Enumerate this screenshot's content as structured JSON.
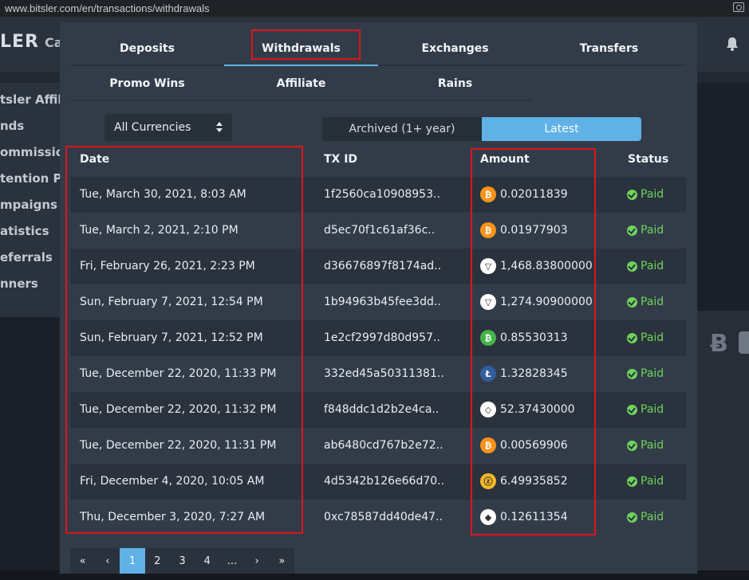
{
  "browser": {
    "url": "www.bitsler.com/en/transactions/withdrawals"
  },
  "site": {
    "logo": "LER",
    "header_tab": "Ca",
    "sidebar": [
      "tsler Affili",
      "nds",
      "ommission",
      "tention P",
      "mpaigns",
      "atistics",
      "eferrals",
      "nners"
    ],
    "right_glyph": "Ƀ"
  },
  "tabs_row1": [
    {
      "label": "Deposits",
      "active": false
    },
    {
      "label": "Withdrawals",
      "active": true
    },
    {
      "label": "Exchanges",
      "active": false
    },
    {
      "label": "Transfers",
      "active": false
    }
  ],
  "tabs_row2": [
    {
      "label": "Promo Wins"
    },
    {
      "label": "Affiliate"
    },
    {
      "label": "Rains"
    }
  ],
  "filter": {
    "currency": "All Currencies"
  },
  "period": {
    "archived": "Archived (1+ year)",
    "latest": "Latest",
    "selected": "Latest"
  },
  "table": {
    "headers": {
      "date": "Date",
      "txid": "TX ID",
      "amount": "Amount",
      "status": "Status"
    },
    "rows": [
      {
        "date": "Tue, March 30, 2021, 8:03 AM",
        "txid": "1f2560ca10908953..",
        "coin": "btc",
        "amount": "0.02011839",
        "status": "Paid"
      },
      {
        "date": "Tue, March 2, 2021, 2:10 PM",
        "txid": "d5ec70f1c61af36c..",
        "coin": "btc",
        "amount": "0.01977903",
        "status": "Paid"
      },
      {
        "date": "Fri, February 26, 2021, 2:23 PM",
        "txid": "d36676897f8174ad..",
        "coin": "trx",
        "amount": "1,468.83800000",
        "status": "Paid"
      },
      {
        "date": "Sun, February 7, 2021, 12:54 PM",
        "txid": "1b94963b45fee3dd..",
        "coin": "trx",
        "amount": "1,274.90900000",
        "status": "Paid"
      },
      {
        "date": "Sun, February 7, 2021, 12:52 PM",
        "txid": "1e2cf2997d80d957..",
        "coin": "bch",
        "amount": "0.85530313",
        "status": "Paid"
      },
      {
        "date": "Tue, December 22, 2020, 11:33 PM",
        "txid": "332ed45a50311381..",
        "coin": "ltc",
        "amount": "1.32828345",
        "status": "Paid"
      },
      {
        "date": "Tue, December 22, 2020, 11:32 PM",
        "txid": "f848ddc1d2b2e4ca..",
        "coin": "eos",
        "amount": "52.37430000",
        "status": "Paid"
      },
      {
        "date": "Tue, December 22, 2020, 11:31 PM",
        "txid": "ab6480cd767b2e72..",
        "coin": "btc",
        "amount": "0.00569906",
        "status": "Paid"
      },
      {
        "date": "Fri, December 4, 2020, 10:05 AM",
        "txid": "4d5342b126e66d70..",
        "coin": "zec",
        "amount": "6.49935852",
        "status": "Paid"
      },
      {
        "date": "Thu, December 3, 2020, 7:27 AM",
        "txid": "0xc78587dd40de47..",
        "coin": "eth",
        "amount": "0.12611354",
        "status": "Paid"
      }
    ]
  },
  "pagination": {
    "items": [
      "«",
      "‹",
      "1",
      "2",
      "3",
      "4",
      "...",
      "›",
      "»"
    ],
    "current": "1"
  },
  "coin_glyphs": {
    "btc": "₿",
    "bch": "₿",
    "ltc": "Ł",
    "zec": "ⓩ",
    "trx": "▽",
    "eos": "◇",
    "eth": "◆"
  }
}
